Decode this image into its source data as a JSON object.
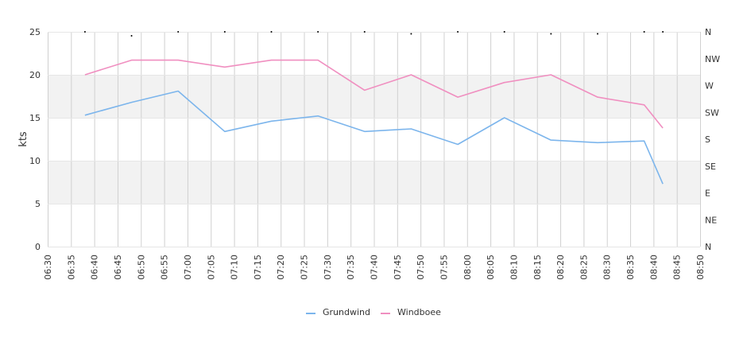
{
  "chart_data": {
    "type": "line",
    "ylabel": "kts",
    "ylim": [
      0,
      25
    ],
    "yticks": [
      "0",
      "5",
      "10",
      "15",
      "20",
      "25"
    ],
    "y2ticks": [
      "N",
      "NE",
      "E",
      "SE",
      "S",
      "SW",
      "W",
      "NW",
      "N"
    ],
    "xticks": [
      "06:30",
      "06:35",
      "06:40",
      "06:45",
      "06:50",
      "06:55",
      "07:00",
      "07:05",
      "07:10",
      "07:15",
      "07:20",
      "07:25",
      "07:30",
      "07:35",
      "07:40",
      "07:45",
      "07:50",
      "07:55",
      "08:00",
      "08:05",
      "08:10",
      "08:15",
      "08:20",
      "08:25",
      "08:30",
      "08:35",
      "08:40",
      "08:45",
      "08:50"
    ],
    "xrange_minutes": [
      390,
      530
    ],
    "grid": true,
    "legend_position": "bottom-center",
    "series": [
      {
        "name": "Grundwind",
        "color": "#7cb5ec",
        "x": [
          "06:38",
          "06:48",
          "06:58",
          "07:08",
          "07:18",
          "07:28",
          "07:38",
          "07:48",
          "07:58",
          "08:08",
          "08:18",
          "08:28",
          "08:38",
          "08:42"
        ],
        "values": [
          15.3,
          16.8,
          18.1,
          13.4,
          14.6,
          15.2,
          13.4,
          13.7,
          11.9,
          15.0,
          12.4,
          12.1,
          12.3,
          7.3
        ]
      },
      {
        "name": "Windboee",
        "color": "#f08fc0",
        "x": [
          "06:38",
          "06:48",
          "06:58",
          "07:08",
          "07:18",
          "07:28",
          "07:38",
          "07:48",
          "07:58",
          "08:08",
          "08:18",
          "08:28",
          "08:38",
          "08:42"
        ],
        "values": [
          20.0,
          21.7,
          21.7,
          20.9,
          21.7,
          21.7,
          18.2,
          20.0,
          17.4,
          19.1,
          20.0,
          17.4,
          16.5,
          13.8
        ]
      }
    ],
    "direction_markers": {
      "x": [
        "06:38",
        "06:48",
        "06:58",
        "07:08",
        "07:18",
        "07:28",
        "07:38",
        "07:48",
        "07:58",
        "08:08",
        "08:18",
        "08:28",
        "08:38",
        "08:42"
      ],
      "values_deg": [
        0,
        10,
        0,
        0,
        0,
        0,
        0,
        5,
        0,
        0,
        5,
        5,
        0,
        0
      ]
    }
  }
}
